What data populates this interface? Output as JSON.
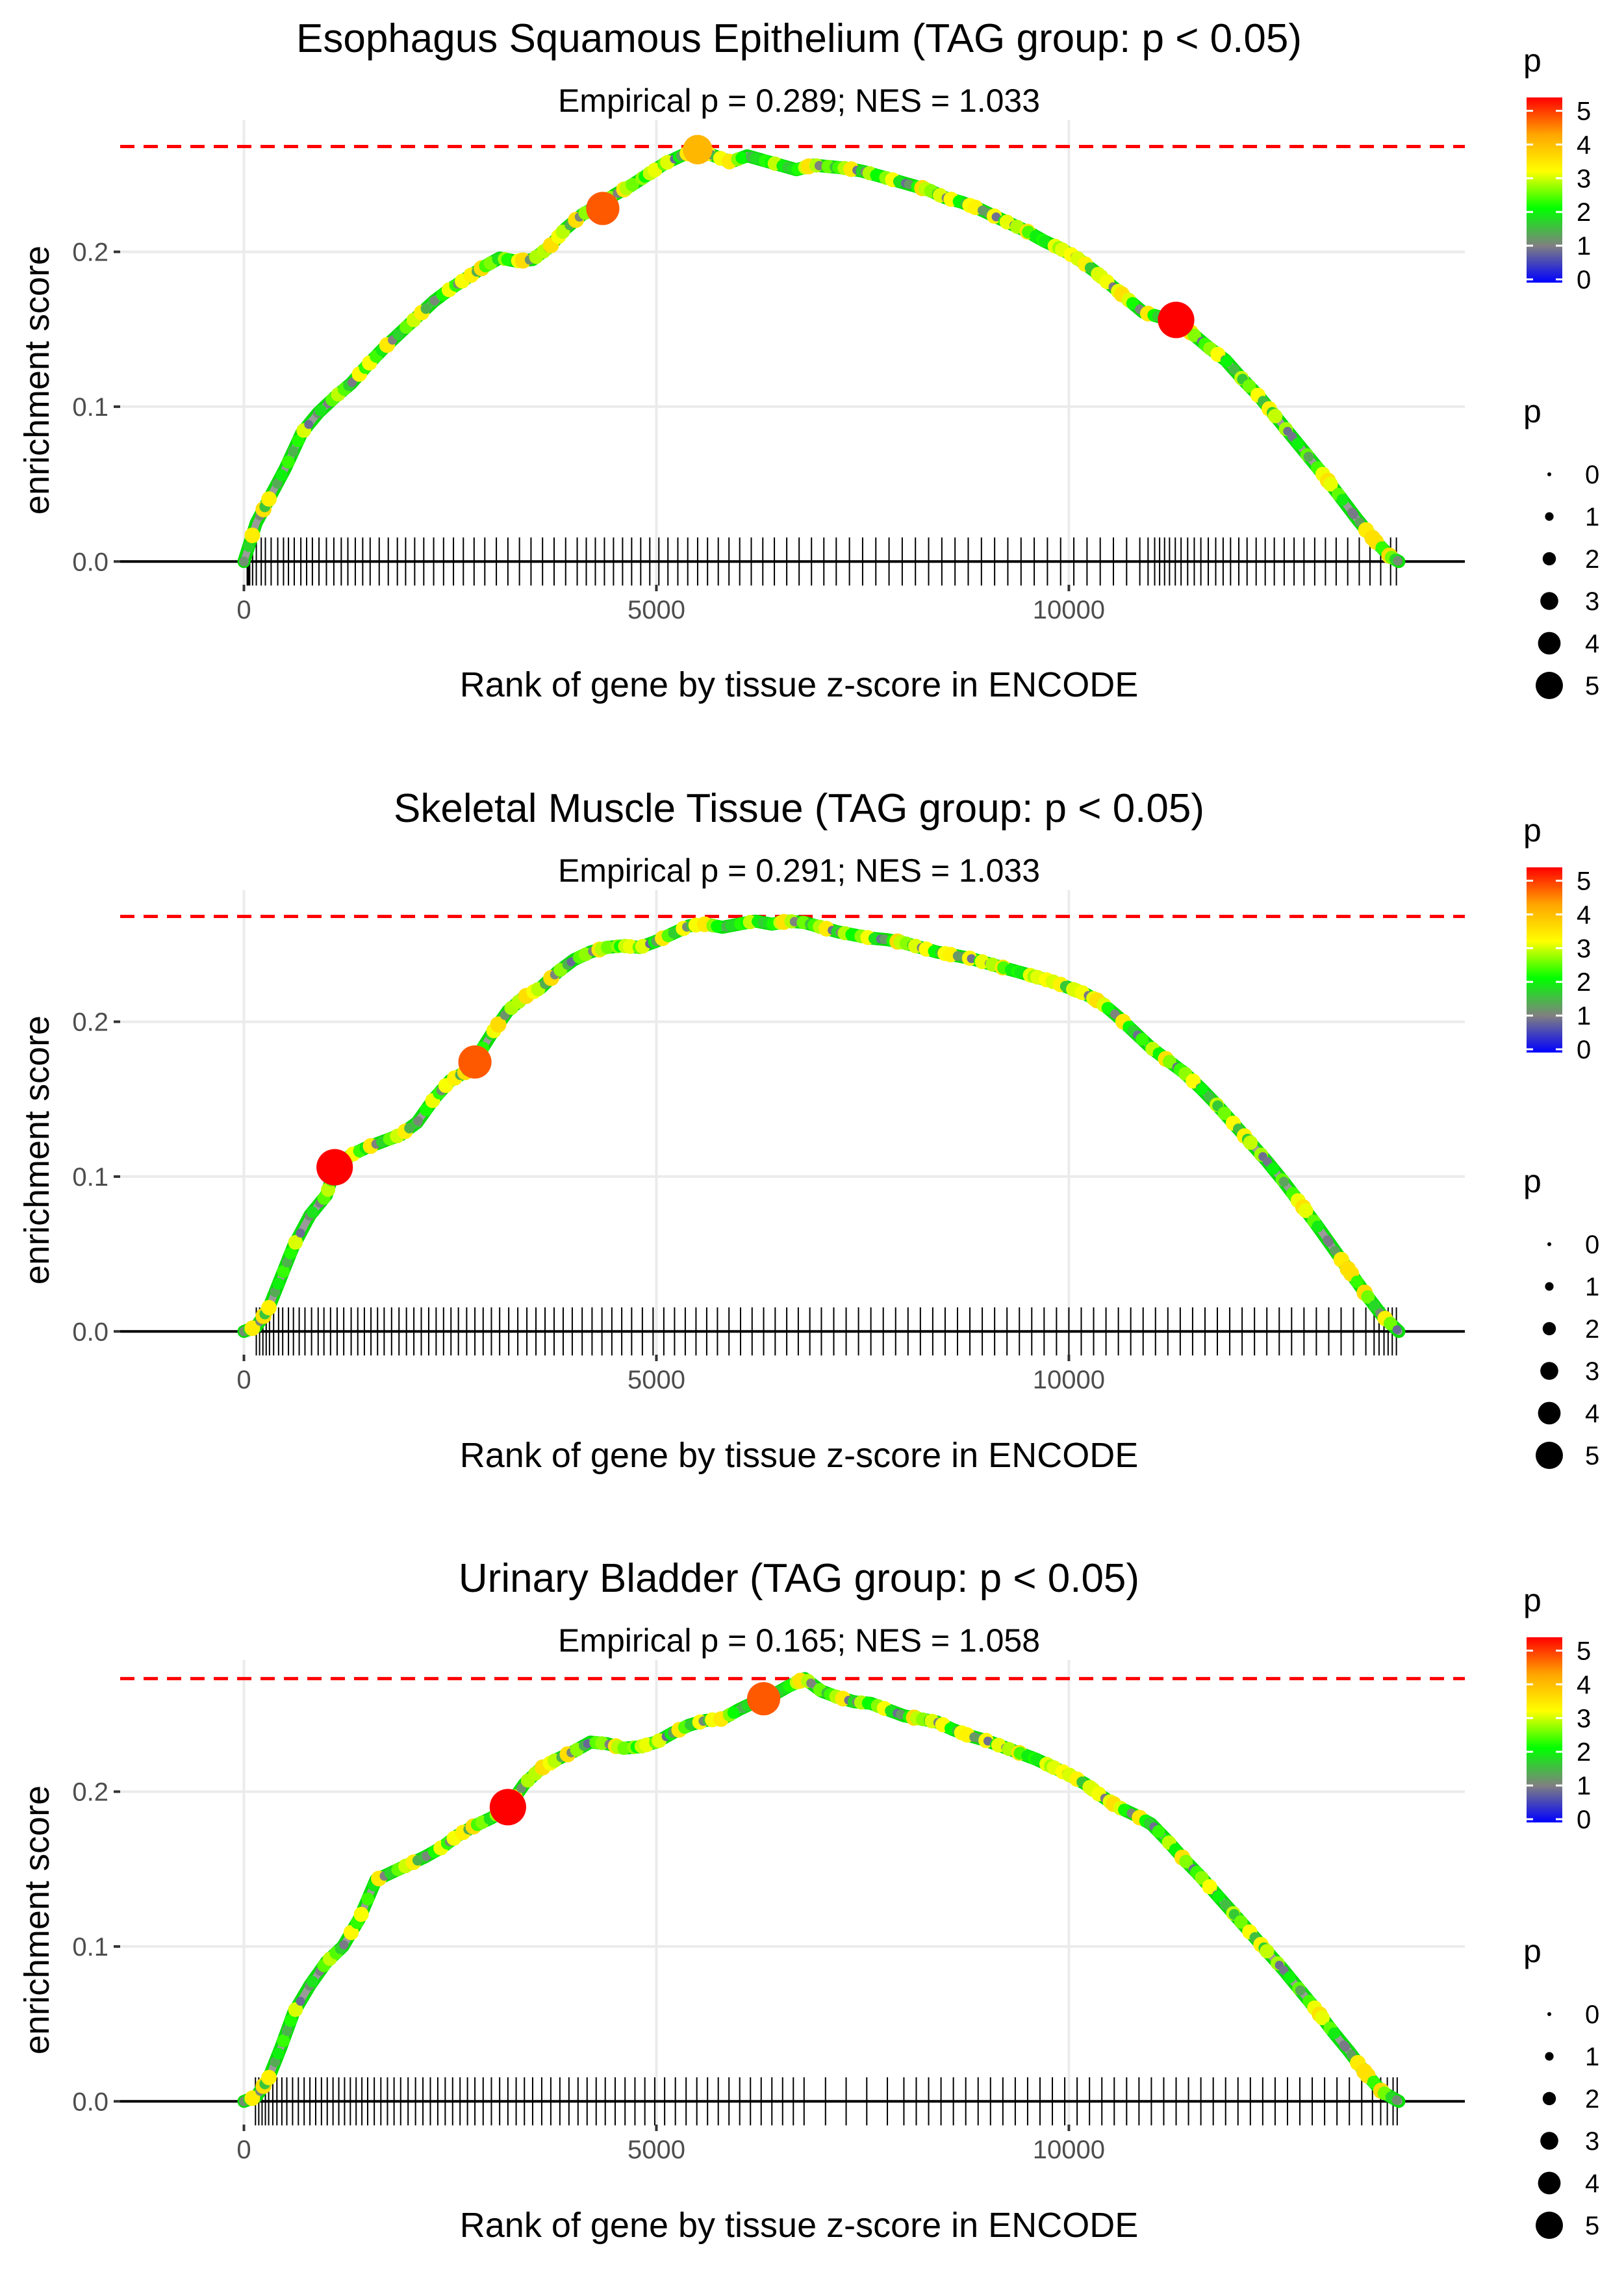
{
  "colors": {
    "background": "#ffffff",
    "grid": "#ebebeb",
    "axis_line": "#000000",
    "threshold_line": "#ff0000",
    "barcode": "#000000",
    "text": "#000000",
    "tick_text": "#4d4d4d",
    "gradient": [
      "#0000ff",
      "#808080",
      "#00ff00",
      "#ffff00",
      "#ffa500",
      "#ff0000"
    ]
  },
  "legend": {
    "color_title": "p",
    "color_ticks": [
      "0",
      "1",
      "2",
      "3",
      "4",
      "5"
    ],
    "size_title": "p",
    "size_labels": [
      "0",
      "1",
      "2",
      "3",
      "4",
      "5"
    ]
  },
  "chart_data": [
    {
      "type": "line",
      "title": "Esophagus Squamous Epithelium (TAG group: p < 0.05)",
      "subtitle": "Empirical p = 0.289; NES = 1.033",
      "xlabel": "Rank of gene by tissue z-score in ENCODE",
      "ylabel": "enrichment score",
      "xlim": [
        -1500,
        14800
      ],
      "ylim": [
        -0.015,
        0.285
      ],
      "x_ticks": [
        0,
        5000,
        10000
      ],
      "x_tick_labels": [
        "0",
        "5000",
        "10000"
      ],
      "y_ticks": [
        0.0,
        0.1,
        0.2
      ],
      "y_tick_labels": [
        "0.0",
        "0.1",
        "0.2"
      ],
      "max_es": 0.268,
      "x": [
        0,
        150,
        300,
        500,
        700,
        900,
        1100,
        1300,
        1500,
        1700,
        1900,
        2100,
        2300,
        2500,
        2700,
        2900,
        3100,
        3300,
        3500,
        3700,
        3900,
        4100,
        4300,
        4500,
        4700,
        4900,
        5100,
        5300,
        5500,
        5700,
        5900,
        6100,
        6300,
        6500,
        6700,
        6900,
        7100,
        7300,
        7500,
        7700,
        7900,
        8100,
        8300,
        8500,
        8700,
        8900,
        9100,
        9300,
        9500,
        9700,
        9900,
        10100,
        10300,
        10500,
        10700,
        10900,
        11100,
        11300,
        11500,
        11700,
        11900,
        12100,
        12300,
        12500,
        12700,
        12900,
        13100,
        13300,
        13500,
        13700,
        13900,
        14000
      ],
      "es": [
        0.0,
        0.025,
        0.04,
        0.06,
        0.083,
        0.096,
        0.106,
        0.115,
        0.127,
        0.138,
        0.148,
        0.158,
        0.168,
        0.176,
        0.183,
        0.19,
        0.196,
        0.194,
        0.195,
        0.203,
        0.215,
        0.224,
        0.23,
        0.237,
        0.243,
        0.25,
        0.257,
        0.262,
        0.266,
        0.262,
        0.258,
        0.262,
        0.259,
        0.256,
        0.253,
        0.256,
        0.255,
        0.254,
        0.252,
        0.249,
        0.246,
        0.243,
        0.24,
        0.235,
        0.232,
        0.228,
        0.223,
        0.218,
        0.213,
        0.207,
        0.202,
        0.196,
        0.188,
        0.179,
        0.17,
        0.161,
        0.158,
        0.155,
        0.147,
        0.138,
        0.13,
        0.118,
        0.107,
        0.094,
        0.081,
        0.068,
        0.055,
        0.041,
        0.027,
        0.014,
        0.003,
        0.0
      ],
      "highlight_points": [
        {
          "x": 4350,
          "y": 0.228,
          "p": 4.6
        },
        {
          "x": 5500,
          "y": 0.266,
          "p": 3.8
        },
        {
          "x": 11300,
          "y": 0.156,
          "p": 5.3
        }
      ],
      "hit_ranks": [
        40,
        55,
        70,
        105,
        150,
        210,
        260,
        330,
        410,
        480,
        540,
        610,
        690,
        760,
        830,
        910,
        1000,
        1090,
        1180,
        1260,
        1350,
        1440,
        1530,
        1640,
        1750,
        1860,
        1960,
        2070,
        2180,
        2300,
        2420,
        2540,
        2660,
        2790,
        2920,
        3060,
        3200,
        3340,
        3480,
        3620,
        3760,
        3900,
        4040,
        4150,
        4260,
        4370,
        4480,
        4590,
        4700,
        4810,
        4920,
        5030,
        5140,
        5260,
        5380,
        5500,
        5620,
        5750,
        5880,
        6010,
        6150,
        6290,
        6430,
        6580,
        6730,
        6880,
        7030,
        7180,
        7340,
        7500,
        7660,
        7820,
        7980,
        8140,
        8300,
        8460,
        8620,
        8780,
        8940,
        9100,
        9260,
        9420,
        9580,
        9740,
        9900,
        10060,
        10220,
        10380,
        10540,
        10700,
        10860,
        10960,
        11040,
        11100,
        11160,
        11220,
        11290,
        11360,
        11440,
        11520,
        11600,
        11690,
        11780,
        11870,
        11960,
        12060,
        12160,
        12270,
        12380,
        12490,
        12610,
        12730,
        12850,
        12980,
        13110,
        13240,
        13380,
        13520,
        13650,
        13780,
        13900,
        13970
      ]
    },
    {
      "type": "line",
      "title": "Skeletal Muscle Tissue (TAG group: p < 0.05)",
      "subtitle": "Empirical p = 0.291; NES = 1.033",
      "xlabel": "Rank of gene by tissue z-score in ENCODE",
      "ylabel": "enrichment score",
      "xlim": [
        -1500,
        14800
      ],
      "ylim": [
        -0.015,
        0.285
      ],
      "x_ticks": [
        0,
        5000,
        10000
      ],
      "x_tick_labels": [
        "0",
        "5000",
        "10000"
      ],
      "y_ticks": [
        0.0,
        0.1,
        0.2
      ],
      "y_tick_labels": [
        "0.0",
        "0.1",
        "0.2"
      ],
      "max_es": 0.268,
      "x": [
        0,
        150,
        300,
        450,
        600,
        800,
        1000,
        1100,
        1300,
        1500,
        1700,
        1900,
        2100,
        2300,
        2500,
        2700,
        2800,
        3000,
        3200,
        3400,
        3600,
        3800,
        4000,
        4200,
        4400,
        4600,
        4800,
        5000,
        5200,
        5400,
        5600,
        5800,
        6000,
        6200,
        6400,
        6600,
        6800,
        7000,
        7200,
        7400,
        7600,
        7800,
        8000,
        8200,
        8400,
        8600,
        8800,
        9000,
        9200,
        9400,
        9600,
        9800,
        10000,
        10200,
        10400,
        10600,
        10800,
        11000,
        11200,
        11400,
        11600,
        11800,
        12000,
        12200,
        12400,
        12600,
        12800,
        13000,
        13200,
        13400,
        13600,
        13800,
        14000
      ],
      "es": [
        0.0,
        0.003,
        0.015,
        0.035,
        0.055,
        0.075,
        0.088,
        0.105,
        0.114,
        0.119,
        0.123,
        0.127,
        0.135,
        0.15,
        0.162,
        0.168,
        0.175,
        0.192,
        0.207,
        0.216,
        0.222,
        0.232,
        0.24,
        0.245,
        0.248,
        0.249,
        0.248,
        0.252,
        0.257,
        0.262,
        0.263,
        0.261,
        0.263,
        0.265,
        0.263,
        0.265,
        0.264,
        0.261,
        0.258,
        0.256,
        0.254,
        0.253,
        0.251,
        0.248,
        0.245,
        0.243,
        0.241,
        0.238,
        0.235,
        0.232,
        0.229,
        0.226,
        0.222,
        0.218,
        0.212,
        0.203,
        0.193,
        0.183,
        0.175,
        0.167,
        0.157,
        0.146,
        0.134,
        0.122,
        0.11,
        0.097,
        0.083,
        0.069,
        0.054,
        0.039,
        0.024,
        0.01,
        0.0
      ],
      "highlight_points": [
        {
          "x": 1100,
          "y": 0.106,
          "p": 5.3
        },
        {
          "x": 2800,
          "y": 0.174,
          "p": 4.6
        }
      ],
      "hit_ranks": [
        150,
        190,
        230,
        270,
        310,
        360,
        420,
        470,
        540,
        600,
        670,
        740,
        820,
        900,
        970,
        1050,
        1130,
        1210,
        1300,
        1380,
        1460,
        1540,
        1620,
        1700,
        1790,
        1880,
        1970,
        2060,
        2150,
        2240,
        2330,
        2420,
        2510,
        2600,
        2700,
        2800,
        2900,
        3000,
        3100,
        3210,
        3320,
        3430,
        3540,
        3650,
        3760,
        3870,
        3980,
        4100,
        4220,
        4340,
        4460,
        4580,
        4700,
        4830,
        4960,
        5090,
        5220,
        5350,
        5480,
        5610,
        5740,
        5880,
        6020,
        6160,
        6300,
        6440,
        6580,
        6720,
        6860,
        7000,
        7150,
        7300,
        7450,
        7600,
        7750,
        7900,
        8050,
        8200,
        8350,
        8500,
        8650,
        8800,
        8950,
        9100,
        9250,
        9400,
        9550,
        9700,
        9850,
        10000,
        10150,
        10300,
        10450,
        10600,
        10750,
        10900,
        11050,
        11200,
        11350,
        11500,
        11650,
        11800,
        11950,
        12100,
        12250,
        12400,
        12550,
        12700,
        12850,
        13000,
        13150,
        13300,
        13450,
        13600,
        13700,
        13760,
        13820,
        13870,
        13920,
        13970
      ]
    },
    {
      "type": "line",
      "title": "Urinary Bladder (TAG group: p < 0.05)",
      "subtitle": "Empirical p = 0.165; NES = 1.058",
      "xlabel": "Rank of gene by tissue z-score in ENCODE",
      "ylabel": "enrichment score",
      "xlim": [
        -1500,
        14800
      ],
      "ylim": [
        -0.015,
        0.285
      ],
      "x_ticks": [
        0,
        5000,
        10000
      ],
      "x_tick_labels": [
        "0",
        "5000",
        "10000"
      ],
      "y_ticks": [
        0.0,
        0.1,
        0.2
      ],
      "y_tick_labels": [
        "0.0",
        "0.1",
        "0.2"
      ],
      "max_es": 0.273,
      "x": [
        0,
        150,
        300,
        450,
        600,
        800,
        1000,
        1200,
        1400,
        1600,
        1800,
        2000,
        2200,
        2400,
        2600,
        2800,
        3000,
        3200,
        3400,
        3600,
        3800,
        4000,
        4200,
        4400,
        4600,
        4800,
        5000,
        5200,
        5400,
        5600,
        5800,
        6000,
        6200,
        6400,
        6600,
        6800,
        7000,
        7200,
        7400,
        7600,
        7800,
        8000,
        8200,
        8400,
        8600,
        8800,
        9000,
        9200,
        9400,
        9600,
        9800,
        10000,
        10200,
        10400,
        10600,
        10800,
        11000,
        11200,
        11400,
        11600,
        11800,
        12000,
        12200,
        12400,
        12600,
        12800,
        13000,
        13200,
        13400,
        13600,
        13800,
        14000
      ],
      "es": [
        0.0,
        0.003,
        0.015,
        0.035,
        0.057,
        0.075,
        0.09,
        0.1,
        0.118,
        0.143,
        0.148,
        0.153,
        0.158,
        0.164,
        0.172,
        0.178,
        0.183,
        0.19,
        0.205,
        0.215,
        0.221,
        0.226,
        0.232,
        0.231,
        0.228,
        0.229,
        0.232,
        0.238,
        0.243,
        0.246,
        0.247,
        0.253,
        0.258,
        0.262,
        0.268,
        0.273,
        0.265,
        0.261,
        0.258,
        0.257,
        0.253,
        0.249,
        0.247,
        0.245,
        0.24,
        0.236,
        0.233,
        0.229,
        0.225,
        0.221,
        0.216,
        0.211,
        0.205,
        0.197,
        0.19,
        0.185,
        0.179,
        0.168,
        0.156,
        0.145,
        0.133,
        0.121,
        0.109,
        0.097,
        0.085,
        0.072,
        0.059,
        0.045,
        0.032,
        0.018,
        0.006,
        0.0
      ],
      "highlight_points": [
        {
          "x": 3200,
          "y": 0.19,
          "p": 5.3
        },
        {
          "x": 6300,
          "y": 0.26,
          "p": 4.6
        }
      ],
      "hit_ranks": [
        140,
        180,
        220,
        260,
        300,
        350,
        400,
        460,
        520,
        590,
        660,
        730,
        800,
        870,
        940,
        1010,
        1080,
        1150,
        1220,
        1290,
        1360,
        1430,
        1500,
        1580,
        1660,
        1740,
        1820,
        1900,
        1990,
        2080,
        2170,
        2260,
        2350,
        2440,
        2530,
        2620,
        2710,
        2800,
        2900,
        3000,
        3100,
        3200,
        3300,
        3400,
        3500,
        3610,
        3720,
        3830,
        3940,
        4050,
        4160,
        4270,
        4380,
        4500,
        4620,
        4740,
        4860,
        4980,
        5100,
        5230,
        5360,
        5490,
        5620,
        5750,
        5880,
        6010,
        6140,
        6270,
        6400,
        6530,
        6660,
        6790,
        7050,
        7300,
        7550,
        7800,
        8000,
        8150,
        8300,
        8450,
        8600,
        8750,
        8900,
        9050,
        9200,
        9350,
        9500,
        9650,
        9800,
        9950,
        10100,
        10250,
        10400,
        10550,
        10700,
        10850,
        11000,
        11150,
        11300,
        11450,
        11600,
        11750,
        11900,
        12050,
        12200,
        12350,
        12500,
        12650,
        12800,
        12950,
        13100,
        13250,
        13400,
        13550,
        13680,
        13780,
        13860,
        13930,
        13980
      ]
    }
  ]
}
